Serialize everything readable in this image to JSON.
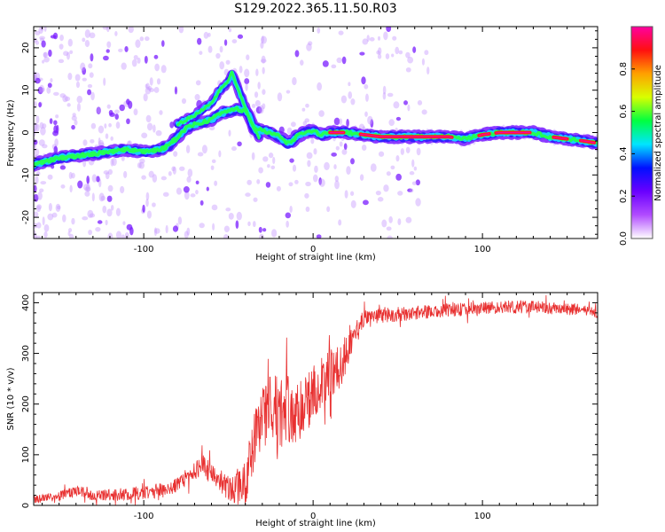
{
  "title": "S129.2022.365.11.50.R03",
  "chart_data": [
    {
      "type": "heatmap",
      "xlabel": "Height of straight line (km)",
      "ylabel": "Frequency (Hz)",
      "xlim": [
        -165,
        168
      ],
      "ylim": [
        -25,
        25
      ],
      "x_ticks": [
        -100,
        0,
        100
      ],
      "y_ticks": [
        -20,
        -10,
        0,
        10,
        20
      ],
      "colorbar": {
        "label": "Normalized spectral amplitude",
        "range": [
          0,
          1
        ],
        "ticks": [
          "0.0",
          "0.2",
          "0.4",
          "0.6",
          "0.8"
        ],
        "colors": [
          "#ffffff",
          "#b14cff",
          "#6a00ff",
          "#0010ff",
          "#00e5ff",
          "#00ff40",
          "#d8ff00",
          "#ffa000",
          "#ff1010",
          "#ff00a0"
        ]
      },
      "ridge": {
        "x": [
          -165,
          -150,
          -140,
          -130,
          -120,
          -110,
          -100,
          -90,
          -85,
          -80,
          -75,
          -70,
          -65,
          -60,
          -55,
          -50,
          -45,
          -40,
          -38,
          -35,
          -30,
          -25,
          -20,
          -15,
          -12,
          -10,
          -5,
          0,
          5,
          10,
          20,
          30,
          40,
          60,
          80,
          90,
          100,
          110,
          120,
          130,
          140,
          150,
          160,
          168
        ],
        "y": [
          -7.5,
          -6,
          -5.5,
          -5,
          -4.5,
          -4,
          -4.5,
          -4,
          -3,
          -1,
          1,
          2,
          2.5,
          3,
          4.5,
          5,
          5.5,
          5,
          4,
          1,
          0.5,
          0,
          -1,
          -2.5,
          -2,
          -1,
          0,
          0.5,
          -0.5,
          0,
          0,
          -0.5,
          -1,
          -1,
          -1,
          -1.5,
          -0.5,
          0,
          0,
          0,
          -1,
          -1.5,
          -2,
          -2.5
        ]
      },
      "branch": {
        "x": [
          -80,
          -70,
          -60,
          -55,
          -50,
          -48,
          -40,
          -35,
          -32
        ],
        "y": [
          2,
          4,
          7,
          10,
          12,
          14,
          6,
          1,
          -1
        ]
      }
    },
    {
      "type": "line",
      "xlabel": "Height of straight line (km)",
      "ylabel": "SNR (10 * v/v)",
      "xlim": [
        -165,
        168
      ],
      "ylim": [
        0,
        420
      ],
      "x_ticks": [
        -100,
        0,
        100
      ],
      "y_ticks": [
        0,
        100,
        200,
        300,
        400
      ],
      "color": "#e83030",
      "trend": {
        "x": [
          -165,
          -150,
          -140,
          -130,
          -120,
          -100,
          -90,
          -80,
          -75,
          -70,
          -65,
          -60,
          -50,
          -40,
          -35,
          -30,
          -25,
          -20,
          -15,
          -10,
          -5,
          0,
          5,
          10,
          15,
          20,
          25,
          30,
          40,
          60,
          80,
          100,
          120,
          140,
          160,
          168
        ],
        "y": [
          12,
          18,
          30,
          20,
          20,
          25,
          30,
          40,
          55,
          70,
          80,
          60,
          35,
          40,
          120,
          170,
          200,
          180,
          190,
          180,
          200,
          220,
          240,
          260,
          270,
          300,
          340,
          370,
          375,
          380,
          385,
          390,
          392,
          390,
          385,
          380
        ]
      },
      "noise": {
        "x": [
          -165,
          -80,
          -50,
          -35,
          -20,
          0,
          20,
          30,
          168
        ],
        "amplitude": [
          8,
          15,
          25,
          60,
          70,
          55,
          40,
          15,
          12
        ]
      }
    }
  ]
}
